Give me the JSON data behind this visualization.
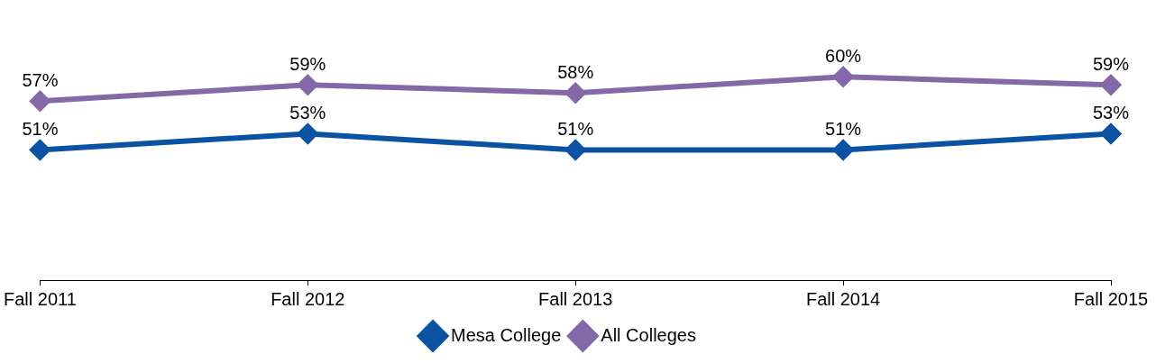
{
  "chart_data": {
    "type": "line",
    "categories": [
      "Fall 2011",
      "Fall 2012",
      "Fall 2013",
      "Fall 2014",
      "Fall 2015"
    ],
    "series": [
      {
        "name": "Mesa College",
        "color": "#0b52a3",
        "values": [
          51,
          53,
          51,
          51,
          53
        ],
        "value_labels": [
          "51%",
          "53%",
          "51%",
          "51%",
          "53%"
        ]
      },
      {
        "name": "All Colleges",
        "color": "#8468a8",
        "values": [
          57,
          59,
          58,
          60,
          59
        ],
        "value_labels": [
          "57%",
          "59%",
          "58%",
          "60%",
          "59%"
        ]
      }
    ],
    "legend": "bottom",
    "marker": "diamond"
  }
}
